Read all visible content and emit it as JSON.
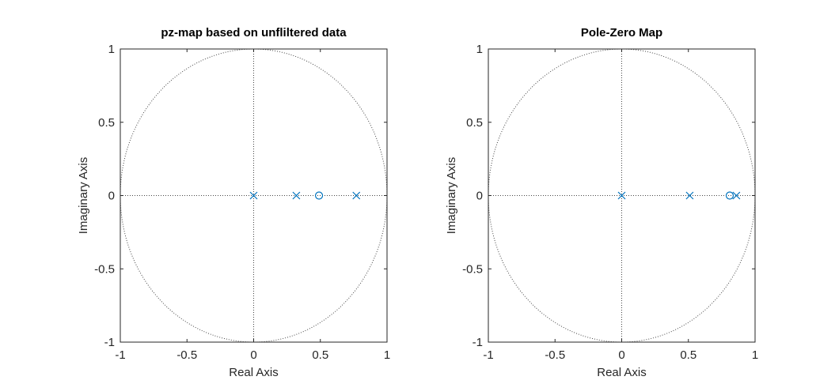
{
  "chart_data": [
    {
      "type": "scatter",
      "title": "pz-map based on unfliltered data",
      "xlabel": "Real Axis",
      "ylabel": "Imaginary Axis",
      "xlim": [
        -1,
        1
      ],
      "ylim": [
        -1,
        1
      ],
      "xticks": [
        "-1",
        "-0.5",
        "0",
        "0.5",
        "1"
      ],
      "yticks": [
        "-1",
        "-0.5",
        "0",
        "0.5",
        "1"
      ],
      "unit_circle": true,
      "grid": false,
      "color": "#0072BD",
      "series": [
        {
          "marker": "x",
          "points": [
            [
              0,
              0
            ],
            [
              0.32,
              0
            ],
            [
              0.77,
              0
            ]
          ]
        },
        {
          "marker": "o",
          "points": [
            [
              0.49,
              0
            ]
          ]
        }
      ]
    },
    {
      "type": "scatter",
      "title": "Pole-Zero Map",
      "xlabel": "Real Axis",
      "ylabel": "Imaginary Axis",
      "xlim": [
        -1,
        1
      ],
      "ylim": [
        -1,
        1
      ],
      "xticks": [
        "-1",
        "-0.5",
        "0",
        "0.5",
        "1"
      ],
      "yticks": [
        "-1",
        "-0.5",
        "0",
        "0.5",
        "1"
      ],
      "unit_circle": true,
      "grid": false,
      "color": "#0072BD",
      "series": [
        {
          "marker": "x",
          "points": [
            [
              0,
              0
            ],
            [
              0.51,
              0
            ],
            [
              0.86,
              0
            ]
          ]
        },
        {
          "marker": "o",
          "points": [
            [
              0.81,
              0
            ]
          ]
        }
      ]
    }
  ]
}
